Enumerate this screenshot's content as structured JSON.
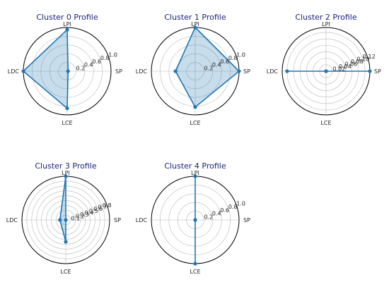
{
  "colors": {
    "title": "#1a237e",
    "line": "#1f77b4",
    "fill": "#1f77b4",
    "grid": "#b8b8b8"
  },
  "chart_data": [
    {
      "type": "radar",
      "title": "Cluster 0 Profile",
      "axes": [
        "SP",
        "LPI",
        "LDC",
        "LCE"
      ],
      "values": [
        0.02,
        0.95,
        1.0,
        0.85
      ],
      "rmax": 1.0,
      "rticks": [
        "0.2",
        "0.4",
        "0.6",
        "0.8",
        "1.0"
      ],
      "rtick_values": [
        0.2,
        0.4,
        0.6,
        0.8,
        1.0
      ],
      "grid": true
    },
    {
      "type": "radar",
      "title": "Cluster 1 Profile",
      "axes": [
        "SP",
        "LPI",
        "LDC",
        "LCE"
      ],
      "values": [
        1.0,
        1.0,
        0.45,
        0.82
      ],
      "rmax": 1.0,
      "rticks": [
        "0.2",
        "0.4",
        "0.6",
        "0.8",
        "1.0"
      ],
      "rtick_values": [
        0.2,
        0.4,
        0.6,
        0.8,
        1.0
      ],
      "grid": true
    },
    {
      "type": "radar",
      "title": "Cluster 2 Profile",
      "axes": [
        "SP",
        "LPI",
        "LDC",
        "LCE"
      ],
      "values": [
        0.135,
        0.0,
        0.12,
        0.0
      ],
      "rmax": 0.135,
      "rticks": [
        "0.02",
        "0.04",
        "0.06",
        "0.08",
        "0.10",
        "0.12"
      ],
      "rtick_values": [
        0.02,
        0.04,
        0.06,
        0.08,
        0.1,
        0.12
      ],
      "grid": true
    },
    {
      "type": "radar",
      "title": "Cluster 3 Profile",
      "axes": [
        "SP",
        "LPI",
        "LDC",
        "LCE"
      ],
      "values": [
        0.0,
        0.9,
        0.12,
        0.45
      ],
      "rmax": 0.9,
      "rticks": [
        "0.1",
        "0.2",
        "0.3",
        "0.4",
        "0.5",
        "0.6",
        "0.7",
        "0.8"
      ],
      "rtick_values": [
        0.1,
        0.2,
        0.3,
        0.4,
        0.5,
        0.6,
        0.7,
        0.8
      ],
      "grid": true
    },
    {
      "type": "radar",
      "title": "Cluster 4 Profile",
      "axes": [
        "SP",
        "LPI",
        "LDC",
        "LCE"
      ],
      "values": [
        0.0,
        1.0,
        0.0,
        1.0
      ],
      "rmax": 1.0,
      "rticks": [
        "0.2",
        "0.4",
        "0.6",
        "0.8",
        "1.0"
      ],
      "rtick_values": [
        0.2,
        0.4,
        0.6,
        0.8,
        1.0
      ],
      "grid": true
    }
  ]
}
